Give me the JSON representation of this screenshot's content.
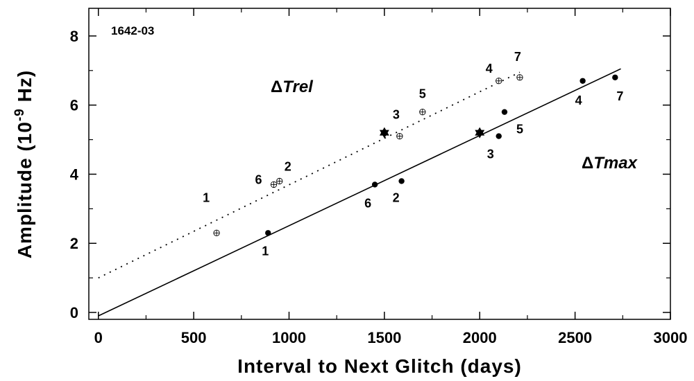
{
  "chart_data": {
    "type": "scatter",
    "title": "1642-03",
    "xlabel": "Interval to Next Glitch (days)",
    "ylabel_main": "Amplitude (10",
    "ylabel_sup": "-9",
    "ylabel_end": " Hz)",
    "xlim": [
      -50,
      3000
    ],
    "ylim": [
      -0.2,
      8.8
    ],
    "x_ticks": [
      0,
      500,
      1000,
      1500,
      2000,
      2500,
      3000
    ],
    "y_ticks": [
      0,
      2,
      4,
      6,
      8
    ],
    "grid": false,
    "series": [
      {
        "name": "ΔTrel",
        "label_symbol": "Δ",
        "label_text": "Trel",
        "marker": "open-circle-cross",
        "points": [
          {
            "x": 620,
            "y": 2.3,
            "label": "1"
          },
          {
            "x": 950,
            "y": 3.8,
            "label": "2"
          },
          {
            "x": 1580,
            "y": 5.1,
            "label": "3"
          },
          {
            "x": 2100,
            "y": 6.7,
            "label": "4"
          },
          {
            "x": 1700,
            "y": 5.8,
            "label": "5"
          },
          {
            "x": 920,
            "y": 3.7,
            "label": "6"
          },
          {
            "x": 2210,
            "y": 6.8,
            "label": "7"
          }
        ],
        "star": {
          "x": 1500,
          "y": 5.2
        },
        "fit": {
          "x": [
            0,
            2210
          ],
          "y": [
            1.0,
            6.95
          ],
          "style": "dotted"
        }
      },
      {
        "name": "ΔTmax",
        "label_symbol": "Δ",
        "label_text": "Tmax",
        "marker": "filled-circle",
        "points": [
          {
            "x": 890,
            "y": 2.3,
            "label": "1"
          },
          {
            "x": 1590,
            "y": 3.8,
            "label": "2"
          },
          {
            "x": 2100,
            "y": 5.1,
            "label": "3"
          },
          {
            "x": 2540,
            "y": 6.7,
            "label": "4"
          },
          {
            "x": 2130,
            "y": 5.8,
            "label": "5"
          },
          {
            "x": 1450,
            "y": 3.7,
            "label": "6"
          },
          {
            "x": 2710,
            "y": 6.8,
            "label": "7"
          }
        ],
        "star": {
          "x": 2000,
          "y": 5.2
        },
        "fit": {
          "x": [
            0,
            2740
          ],
          "y": [
            -0.1,
            7.05
          ],
          "style": "solid"
        }
      }
    ]
  }
}
